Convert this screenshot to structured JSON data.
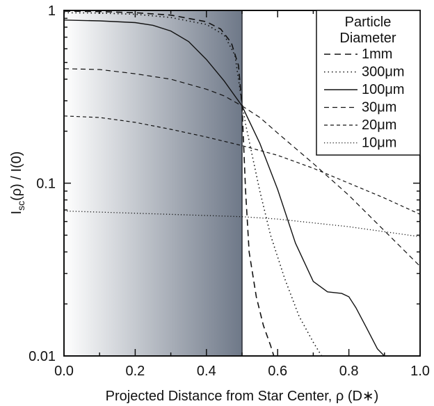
{
  "chart_data": {
    "type": "line",
    "xlabel": "Projected Distance from Star Center, ρ (D∗)",
    "ylabel": {
      "main": "I",
      "sub": "sc",
      "rest": "(ρ) / I(0)"
    },
    "xlim": [
      0.0,
      1.0
    ],
    "ylim": [
      0.01,
      1.0
    ],
    "y_scale": "log",
    "x_ticks": [
      0.0,
      0.2,
      0.4,
      0.6,
      0.8,
      1.0
    ],
    "x_tick_labels": [
      "0.0",
      "0.2",
      "0.4",
      "0.6",
      "0.8",
      "1.0"
    ],
    "y_ticks": [
      0.01,
      0.1,
      1.0
    ],
    "y_tick_labels": [
      "0.01",
      "0.1",
      "1"
    ],
    "grid": false,
    "stellar_disk_shading": {
      "x_range": [
        0.0,
        0.5
      ],
      "color_light": "#ffffff",
      "color_dark": "#6e7888"
    },
    "legend": {
      "title_lines": [
        "Particle",
        "Diameter"
      ],
      "placement": "top-right",
      "entries": [
        {
          "label": "1mm",
          "dash": "long-dash"
        },
        {
          "label": "300μm",
          "dash": "dotted"
        },
        {
          "label": "100μm",
          "dash": "solid"
        },
        {
          "label": "30μm",
          "dash": "dash"
        },
        {
          "label": "20μm",
          "dash": "short-dash"
        },
        {
          "label": "10μm",
          "dash": "fine-dot"
        }
      ]
    },
    "series": [
      {
        "name": "1mm",
        "dash": "long-dash",
        "x": [
          0.0,
          0.1,
          0.2,
          0.3,
          0.4,
          0.44,
          0.47,
          0.49,
          0.5,
          0.51,
          0.52,
          0.54,
          0.56,
          0.58,
          0.6
        ],
        "y": [
          0.99,
          0.985,
          0.97,
          0.94,
          0.86,
          0.78,
          0.65,
          0.48,
          0.28,
          0.09,
          0.04,
          0.022,
          0.015,
          0.0115,
          0.0085
        ]
      },
      {
        "name": "300μm",
        "dash": "dotted",
        "x": [
          0.0,
          0.1,
          0.2,
          0.3,
          0.4,
          0.45,
          0.48,
          0.5,
          0.51,
          0.53,
          0.55,
          0.58,
          0.62,
          0.66,
          0.7,
          0.73
        ],
        "y": [
          0.97,
          0.965,
          0.95,
          0.91,
          0.83,
          0.72,
          0.55,
          0.29,
          0.22,
          0.14,
          0.09,
          0.05,
          0.028,
          0.017,
          0.012,
          0.0095
        ]
      },
      {
        "name": "100μm",
        "dash": "solid",
        "x": [
          0.0,
          0.1,
          0.2,
          0.25,
          0.3,
          0.35,
          0.4,
          0.45,
          0.5,
          0.55,
          0.6,
          0.65,
          0.7,
          0.74,
          0.78,
          0.8,
          0.82,
          0.85,
          0.88,
          0.91
        ],
        "y": [
          0.88,
          0.87,
          0.85,
          0.82,
          0.76,
          0.66,
          0.52,
          0.39,
          0.28,
          0.17,
          0.092,
          0.045,
          0.027,
          0.0235,
          0.023,
          0.022,
          0.019,
          0.0145,
          0.011,
          0.0095
        ]
      },
      {
        "name": "30μm",
        "dash": "dash",
        "x": [
          0.0,
          0.1,
          0.2,
          0.3,
          0.4,
          0.45,
          0.5,
          0.55,
          0.6,
          0.7,
          0.8,
          0.9,
          1.0
        ],
        "y": [
          0.46,
          0.455,
          0.43,
          0.4,
          0.35,
          0.32,
          0.28,
          0.24,
          0.195,
          0.13,
          0.085,
          0.053,
          0.033
        ]
      },
      {
        "name": "20μm",
        "dash": "short-dash",
        "x": [
          0.0,
          0.1,
          0.2,
          0.3,
          0.4,
          0.5,
          0.6,
          0.7,
          0.8,
          0.9,
          1.0
        ],
        "y": [
          0.245,
          0.24,
          0.225,
          0.205,
          0.185,
          0.165,
          0.145,
          0.122,
          0.1,
          0.082,
          0.066
        ]
      },
      {
        "name": "10μm",
        "dash": "fine-dot",
        "x": [
          0.0,
          0.2,
          0.4,
          0.5,
          0.6,
          0.8,
          1.0
        ],
        "y": [
          0.069,
          0.067,
          0.065,
          0.064,
          0.062,
          0.056,
          0.049
        ]
      }
    ]
  }
}
